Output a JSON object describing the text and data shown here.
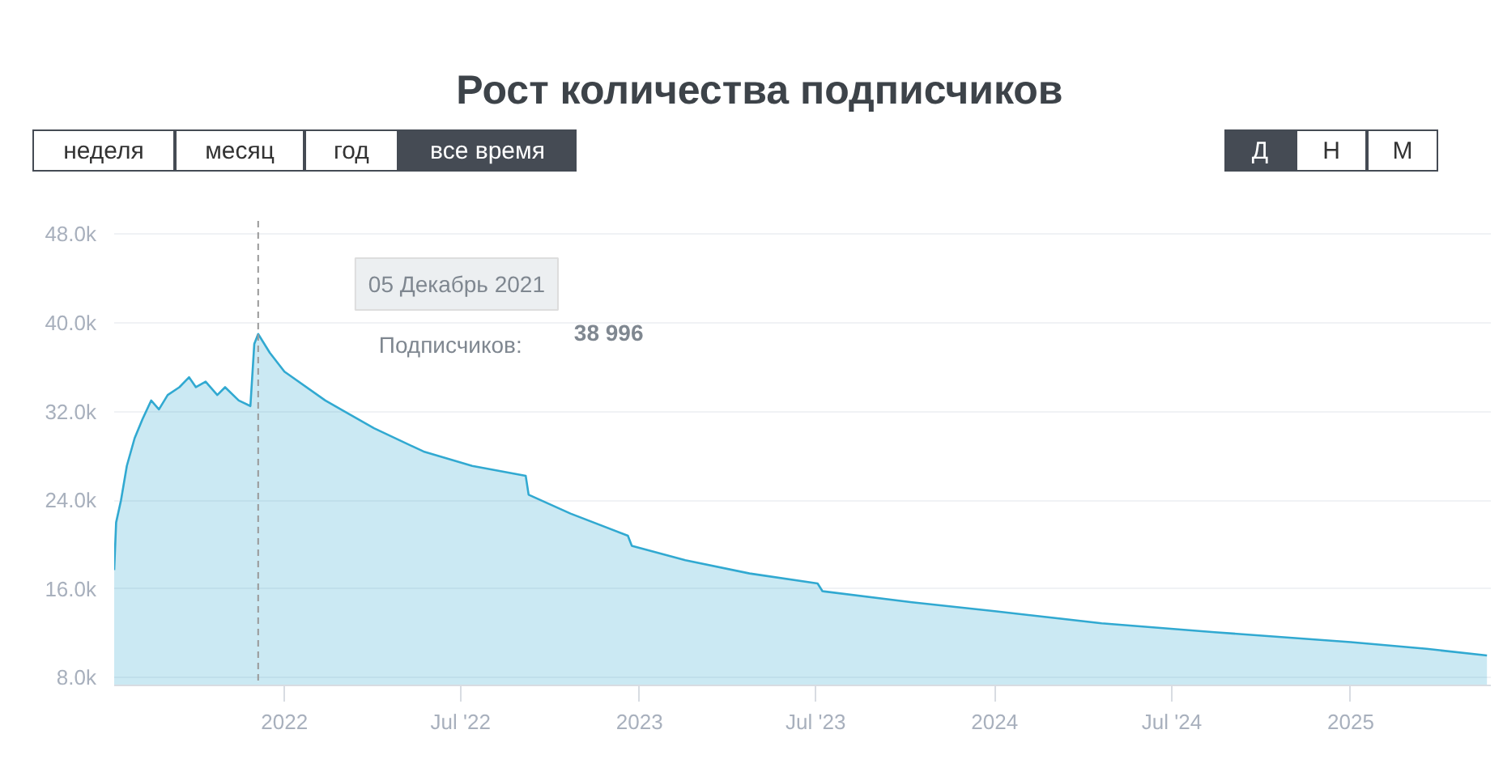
{
  "chart_data": {
    "type": "area",
    "title": "Рост количества подписчиков",
    "x": [
      "2021-07-10",
      "2021-07-12",
      "2021-07-17",
      "2021-07-23",
      "2021-07-31",
      "2021-08-08",
      "2021-08-17",
      "2021-08-25",
      "2021-09-03",
      "2021-09-15",
      "2021-09-25",
      "2021-10-02",
      "2021-10-12",
      "2021-10-24",
      "2021-11-01",
      "2021-11-15",
      "2021-11-27",
      "2021-12-01",
      "2021-12-05",
      "2021-12-17",
      "2022-01-01",
      "2022-02-12",
      "2022-04-03",
      "2022-05-24",
      "2022-07-13",
      "2022-09-06",
      "2022-09-09",
      "2022-10-22",
      "2022-12-20",
      "2022-12-24",
      "2023-02-17",
      "2023-04-24",
      "2023-07-03",
      "2023-07-08",
      "2023-10-08",
      "2024-01-01",
      "2024-04-20",
      "2024-08-14",
      "2025-01-01",
      "2025-03-20",
      "2025-05-21"
    ],
    "series": [
      {
        "name": "Подписчиков:",
        "color": "#31a9d1",
        "values": [
          17700,
          22000,
          24000,
          27100,
          29600,
          31300,
          33000,
          32200,
          33500,
          34200,
          35100,
          34200,
          34700,
          33500,
          34200,
          33000,
          32500,
          38100,
          39000,
          37300,
          35600,
          33000,
          30500,
          28400,
          27100,
          26200,
          24500,
          22800,
          20800,
          19900,
          18600,
          17400,
          16500,
          15800,
          14800,
          14000,
          12900,
          12100,
          11200,
          10600,
          10000
        ]
      }
    ],
    "xlim": [
      "2021-07-10",
      "2025-05-25"
    ],
    "xticks": [
      {
        "value": "2022-01-01",
        "label": "2022"
      },
      {
        "value": "2022-07-01",
        "label": "Jul '22"
      },
      {
        "value": "2023-01-01",
        "label": "2023"
      },
      {
        "value": "2023-07-01",
        "label": "Jul '23"
      },
      {
        "value": "2024-01-01",
        "label": "2024"
      },
      {
        "value": "2024-07-01",
        "label": "Jul '24"
      },
      {
        "value": "2025-01-01",
        "label": "2025"
      }
    ],
    "ylim": [
      7300,
      49200
    ],
    "yticks": [
      {
        "value": 8000,
        "label": "8.0k"
      },
      {
        "value": 16000,
        "label": "16.0k"
      },
      {
        "value": 24000,
        "label": "24.0k"
      },
      {
        "value": 32000,
        "label": "32.0k"
      },
      {
        "value": 40000,
        "label": "40.0k"
      },
      {
        "value": 48000,
        "label": "48.0k"
      }
    ],
    "grid": "y",
    "legend": "top left",
    "ref_lines": [
      {
        "axis": "x",
        "value": "2021-12-05",
        "color": "#999999",
        "line_style": "dashed"
      }
    ],
    "annotations": [
      "неделя",
      "месяц",
      "год",
      "все время",
      "Д",
      "Н",
      "М",
      "05 Декабрь 2021",
      "38 996"
    ]
  }
}
